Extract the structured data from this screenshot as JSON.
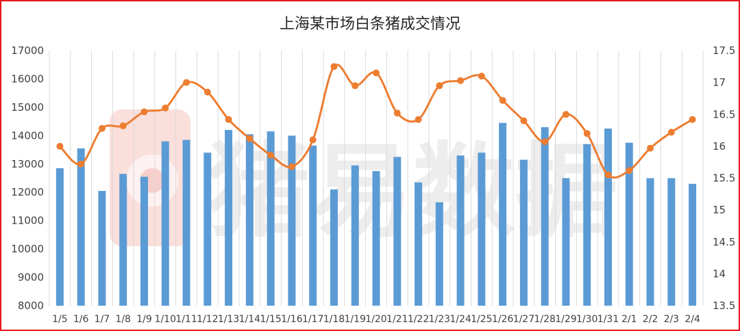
{
  "colors": {
    "frame": "#e8151b",
    "bar": "#5b9bd5",
    "line": "#ed7d31",
    "grid": "#d9d9d9",
    "watermark_logo": "#f4b7b0"
  },
  "watermark": {
    "text": "猪易数据",
    "icon": "pig-logo-icon"
  },
  "chart_data": {
    "type": "bar",
    "title": "上海某市场白条猪成交情况",
    "categories": [
      "1/5",
      "1/6",
      "1/7",
      "1/8",
      "1/9",
      "1/10",
      "1/11",
      "1/12",
      "1/13",
      "1/14",
      "1/15",
      "1/16",
      "1/17",
      "1/18",
      "1/19",
      "1/20",
      "1/21",
      "1/22",
      "1/23",
      "1/24",
      "1/25",
      "1/26",
      "1/27",
      "1/28",
      "1/29",
      "1/30",
      "1/31",
      "2/1",
      "2/2",
      "2/3",
      "2/4"
    ],
    "series": [
      {
        "type": "bar",
        "axis": "left",
        "values": [
          12850,
          13550,
          12050,
          12650,
          12550,
          13800,
          13850,
          13400,
          14200,
          14050,
          14150,
          14000,
          13650,
          12100,
          12950,
          12750,
          13250,
          12350,
          11650,
          13300,
          13400,
          14450,
          13150,
          14300,
          12500,
          13700,
          14250,
          13750,
          12500,
          12500,
          12300
        ]
      },
      {
        "type": "line",
        "axis": "right",
        "smooth": true,
        "values": [
          16.0,
          15.72,
          16.28,
          16.32,
          16.54,
          16.6,
          17.0,
          16.85,
          16.42,
          16.12,
          15.86,
          15.68,
          16.1,
          17.25,
          16.95,
          17.15,
          16.52,
          16.42,
          16.95,
          17.03,
          17.1,
          16.72,
          16.4,
          16.07,
          16.5,
          16.2,
          15.55,
          15.62,
          15.97,
          16.22,
          16.42
        ]
      }
    ],
    "y_left": {
      "lim": [
        8000,
        17000
      ],
      "ticks": [
        "8000",
        "9000",
        "10000",
        "11000",
        "12000",
        "13000",
        "14000",
        "15000",
        "16000",
        "17000"
      ]
    },
    "y_right": {
      "lim": [
        13.5,
        17.5
      ],
      "ticks": [
        "13.5",
        "14",
        "14.5",
        "15",
        "15.5",
        "16",
        "16.5",
        "17",
        "17.5"
      ]
    },
    "grid": "vertical",
    "legend": "none",
    "xlabel": "",
    "ylabel": ""
  }
}
